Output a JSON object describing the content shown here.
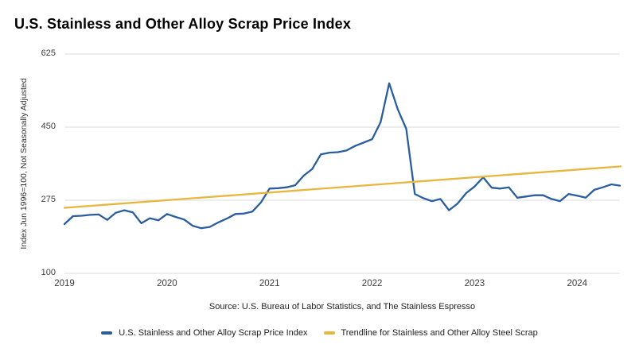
{
  "chart_data": {
    "type": "line",
    "title": "U.S. Stainless and Other Alloy Scrap Price Index",
    "ylabel": "Index Jun 1996=100, Not Seasonally Adjusted",
    "xlabel": "",
    "source": "Source: U.S. Bureau of Labor Statistics, and The Stainless Espresso",
    "x_tick_labels": [
      "2019",
      "2020",
      "2021",
      "2022",
      "2023",
      "2024"
    ],
    "y_ticks": [
      100,
      275,
      450,
      625
    ],
    "ylim": [
      100,
      625
    ],
    "grid": "horizontal",
    "grid_color": "#dbdbdb",
    "legend_position": "bottom",
    "x_range": {
      "start": "2019-01",
      "end": "2024-06",
      "frequency": "monthly"
    },
    "months": [
      "2019-01",
      "2019-02",
      "2019-03",
      "2019-04",
      "2019-05",
      "2019-06",
      "2019-07",
      "2019-08",
      "2019-09",
      "2019-10",
      "2019-11",
      "2019-12",
      "2020-01",
      "2020-02",
      "2020-03",
      "2020-04",
      "2020-05",
      "2020-06",
      "2020-07",
      "2020-08",
      "2020-09",
      "2020-10",
      "2020-11",
      "2020-12",
      "2021-01",
      "2021-02",
      "2021-03",
      "2021-04",
      "2021-05",
      "2021-06",
      "2021-07",
      "2021-08",
      "2021-09",
      "2021-10",
      "2021-11",
      "2021-12",
      "2022-01",
      "2022-02",
      "2022-03",
      "2022-04",
      "2022-05",
      "2022-06",
      "2022-07",
      "2022-08",
      "2022-09",
      "2022-10",
      "2022-11",
      "2022-12",
      "2023-01",
      "2023-02",
      "2023-03",
      "2023-04",
      "2023-05",
      "2023-06",
      "2023-07",
      "2023-08",
      "2023-09",
      "2023-10",
      "2023-11",
      "2023-12",
      "2024-01",
      "2024-02",
      "2024-03",
      "2024-04",
      "2024-05",
      "2024-06"
    ],
    "series": [
      {
        "name": "U.S. Stainless and Other Alloy Scrap Price Index",
        "color": "#2a5d9e",
        "values": [
          218,
          237,
          238,
          240,
          241,
          228,
          245,
          251,
          246,
          220,
          232,
          227,
          242,
          235,
          229,
          214,
          208,
          211,
          222,
          231,
          242,
          243,
          248,
          270,
          303,
          304,
          306,
          311,
          334,
          350,
          385,
          389,
          390,
          394,
          405,
          413,
          421,
          462,
          555,
          493,
          446,
          290,
          280,
          273,
          278,
          251,
          267,
          292,
          308,
          330,
          305,
          303,
          306,
          281,
          284,
          287,
          287,
          278,
          273,
          290,
          286,
          281,
          300,
          306,
          313,
          310
        ]
      },
      {
        "name": "Trendline for Stainless and Other Alloy Steel Scrap",
        "color": "#e8b63e",
        "trend": true,
        "start_value": 257,
        "end_value": 356
      }
    ]
  }
}
